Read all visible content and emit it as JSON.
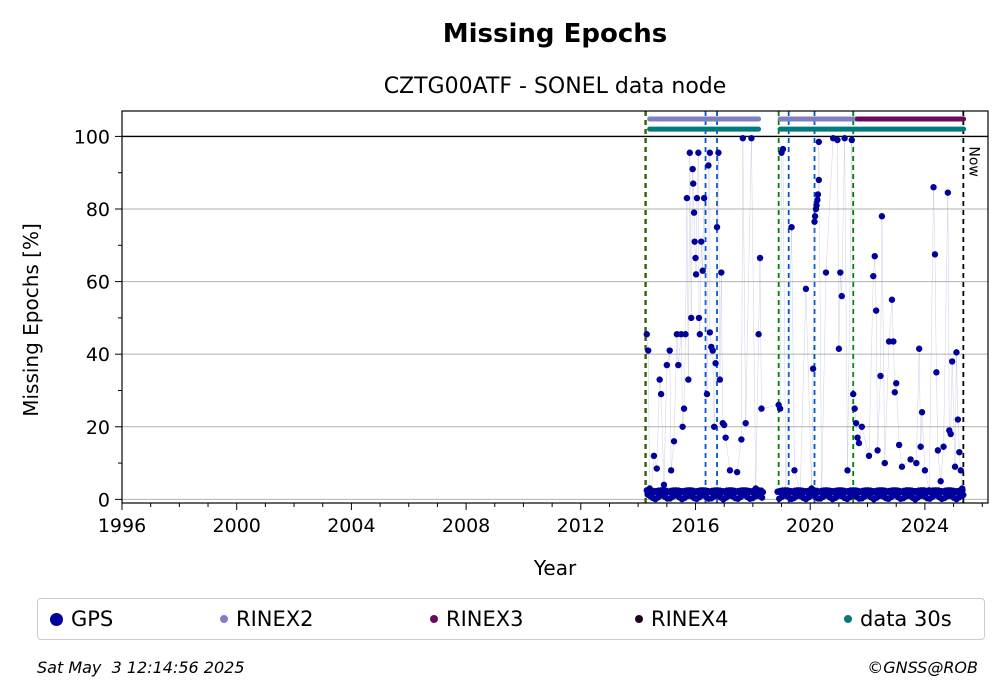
{
  "chart_data": {
    "type": "scatter",
    "title": "Missing Epochs",
    "subtitle": "CZTG00ATF - SONEL data node",
    "xlabel": "Year",
    "ylabel": "Missing Epochs [%]",
    "xlim": [
      1996,
      2026.2
    ],
    "ylim": [
      -1,
      107
    ],
    "xticks": [
      1996,
      2000,
      2004,
      2008,
      2012,
      2016,
      2020,
      2024
    ],
    "yticks": [
      0,
      20,
      40,
      60,
      80,
      100
    ],
    "grid": "horizontal",
    "reference_line": 100,
    "now_label": "Now",
    "now_x": 2025.34,
    "vlines": [
      {
        "x": 2014.25,
        "color": "#cc0000",
        "style": "dashed"
      },
      {
        "x": 2014.27,
        "color": "#008000",
        "style": "dashed"
      },
      {
        "x": 2016.35,
        "color": "#0055cc",
        "style": "dashed"
      },
      {
        "x": 2016.75,
        "color": "#0055cc",
        "style": "dashed"
      },
      {
        "x": 2018.9,
        "color": "#008000",
        "style": "dashed"
      },
      {
        "x": 2019.25,
        "color": "#0055cc",
        "style": "dashed"
      },
      {
        "x": 2020.15,
        "color": "#0055cc",
        "style": "dashed"
      },
      {
        "x": 2021.5,
        "color": "#008000",
        "style": "dashed"
      },
      {
        "x": 2025.34,
        "color": "#000000",
        "style": "dashed"
      }
    ],
    "availability_bars": [
      {
        "name": "RINEX2",
        "y": 104.8,
        "color": "#8080c0",
        "ranges": [
          [
            2014.4,
            2018.2
          ],
          [
            2018.95,
            2021.65
          ]
        ]
      },
      {
        "name": "RINEX3",
        "y": 104.8,
        "color": "#6a0a5a",
        "ranges": [
          [
            2021.65,
            2025.35
          ]
        ]
      },
      {
        "name": "data 30s",
        "y": 102.0,
        "color": "#007a7a",
        "ranges": [
          [
            2014.4,
            2018.2
          ],
          [
            2018.95,
            2025.35
          ]
        ]
      }
    ],
    "series": [
      {
        "name": "GPS",
        "color": "#00009a",
        "points": [
          [
            2014.3,
            45.5
          ],
          [
            2014.35,
            41
          ],
          [
            2014.4,
            3
          ],
          [
            2014.45,
            1
          ],
          [
            2014.55,
            12
          ],
          [
            2014.65,
            8.5
          ],
          [
            2014.75,
            33
          ],
          [
            2014.8,
            29
          ],
          [
            2014.9,
            4
          ],
          [
            2015.0,
            37
          ],
          [
            2015.1,
            41
          ],
          [
            2015.15,
            8
          ],
          [
            2015.25,
            16
          ],
          [
            2015.35,
            45.5
          ],
          [
            2015.4,
            37
          ],
          [
            2015.5,
            45.5
          ],
          [
            2015.55,
            20
          ],
          [
            2015.6,
            25
          ],
          [
            2015.65,
            45.5
          ],
          [
            2015.7,
            83
          ],
          [
            2015.75,
            33
          ],
          [
            2015.8,
            95.5
          ],
          [
            2015.85,
            50
          ],
          [
            2015.9,
            91
          ],
          [
            2015.92,
            87
          ],
          [
            2015.95,
            79
          ],
          [
            2015.97,
            71
          ],
          [
            2016.0,
            66.5
          ],
          [
            2016.02,
            62
          ],
          [
            2016.05,
            83
          ],
          [
            2016.1,
            95.5
          ],
          [
            2016.12,
            50
          ],
          [
            2016.15,
            45.5
          ],
          [
            2016.2,
            71
          ],
          [
            2016.25,
            63
          ],
          [
            2016.3,
            83
          ],
          [
            2016.4,
            29
          ],
          [
            2016.45,
            92
          ],
          [
            2016.5,
            95.5
          ],
          [
            2016.5,
            46
          ],
          [
            2016.55,
            42
          ],
          [
            2016.6,
            41
          ],
          [
            2016.65,
            20
          ],
          [
            2016.7,
            37.5
          ],
          [
            2016.75,
            75
          ],
          [
            2016.8,
            95.5
          ],
          [
            2016.85,
            33
          ],
          [
            2016.9,
            62.5
          ],
          [
            2016.95,
            21
          ],
          [
            2017.0,
            20.5
          ],
          [
            2017.05,
            17
          ],
          [
            2017.2,
            8
          ],
          [
            2017.45,
            7.5
          ],
          [
            2017.6,
            16.5
          ],
          [
            2017.65,
            99.5
          ],
          [
            2017.75,
            21
          ],
          [
            2017.95,
            99.5
          ],
          [
            2018.1,
            3
          ],
          [
            2018.2,
            45.5
          ],
          [
            2018.25,
            66.5
          ],
          [
            2018.3,
            25
          ],
          [
            2018.9,
            26
          ],
          [
            2018.95,
            25
          ],
          [
            2019.0,
            95.5
          ],
          [
            2019.05,
            96.5
          ],
          [
            2019.15,
            1
          ],
          [
            2019.35,
            75
          ],
          [
            2019.45,
            8
          ],
          [
            2019.65,
            2
          ],
          [
            2019.85,
            58
          ],
          [
            2020.05,
            3
          ],
          [
            2020.1,
            36
          ],
          [
            2020.15,
            76.5
          ],
          [
            2020.17,
            78
          ],
          [
            2020.2,
            80
          ],
          [
            2020.22,
            81
          ],
          [
            2020.25,
            82.5
          ],
          [
            2020.27,
            84
          ],
          [
            2020.3,
            88
          ],
          [
            2020.3,
            98.5
          ],
          [
            2020.4,
            2
          ],
          [
            2020.55,
            62.5
          ],
          [
            2020.8,
            99.5
          ],
          [
            2020.95,
            99
          ],
          [
            2021.0,
            41.5
          ],
          [
            2021.05,
            62.5
          ],
          [
            2021.1,
            56
          ],
          [
            2021.2,
            99.5
          ],
          [
            2021.3,
            8
          ],
          [
            2021.45,
            99
          ],
          [
            2021.5,
            29
          ],
          [
            2021.55,
            25
          ],
          [
            2021.6,
            21
          ],
          [
            2021.65,
            17
          ],
          [
            2021.7,
            15.5
          ],
          [
            2021.8,
            20
          ],
          [
            2022.05,
            12
          ],
          [
            2022.2,
            61.5
          ],
          [
            2022.25,
            67
          ],
          [
            2022.3,
            52
          ],
          [
            2022.35,
            13.5
          ],
          [
            2022.45,
            34
          ],
          [
            2022.5,
            78
          ],
          [
            2022.6,
            10
          ],
          [
            2022.75,
            43.5
          ],
          [
            2022.85,
            55
          ],
          [
            2022.9,
            43.5
          ],
          [
            2022.95,
            29.5
          ],
          [
            2023.0,
            32
          ],
          [
            2023.1,
            15
          ],
          [
            2023.2,
            9
          ],
          [
            2023.5,
            11
          ],
          [
            2023.7,
            10
          ],
          [
            2023.8,
            41.5
          ],
          [
            2023.85,
            14.5
          ],
          [
            2023.9,
            24
          ],
          [
            2024.0,
            8
          ],
          [
            2024.15,
            2.5
          ],
          [
            2024.3,
            86
          ],
          [
            2024.35,
            67.5
          ],
          [
            2024.4,
            35
          ],
          [
            2024.45,
            13.5
          ],
          [
            2024.55,
            5
          ],
          [
            2024.65,
            14.5
          ],
          [
            2024.8,
            84.5
          ],
          [
            2024.85,
            19
          ],
          [
            2024.9,
            18
          ],
          [
            2024.95,
            38
          ],
          [
            2025.05,
            9
          ],
          [
            2025.1,
            40.5
          ],
          [
            2025.15,
            22
          ],
          [
            2025.2,
            13
          ],
          [
            2025.25,
            8
          ],
          [
            2025.3,
            3
          ]
        ]
      },
      {
        "name": "RINEX2",
        "color": "#8080c0",
        "points": []
      },
      {
        "name": "RINEX3",
        "color": "#6a0a5a",
        "points": []
      },
      {
        "name": "RINEX4",
        "color": "#200020",
        "points": []
      },
      {
        "name": "data 30s",
        "color": "#007a7a",
        "points": []
      }
    ]
  },
  "legend": [
    {
      "label": "GPS",
      "color": "#00009a"
    },
    {
      "label": "RINEX2",
      "color": "#8080c0"
    },
    {
      "label": "RINEX3",
      "color": "#6a0a5a"
    },
    {
      "label": "RINEX4",
      "color": "#200020"
    },
    {
      "label": "data 30s",
      "color": "#007a7a"
    }
  ],
  "footer": {
    "timestamp": "Sat May  3 12:14:56 2025",
    "copyright": "©GNSS@ROB"
  }
}
